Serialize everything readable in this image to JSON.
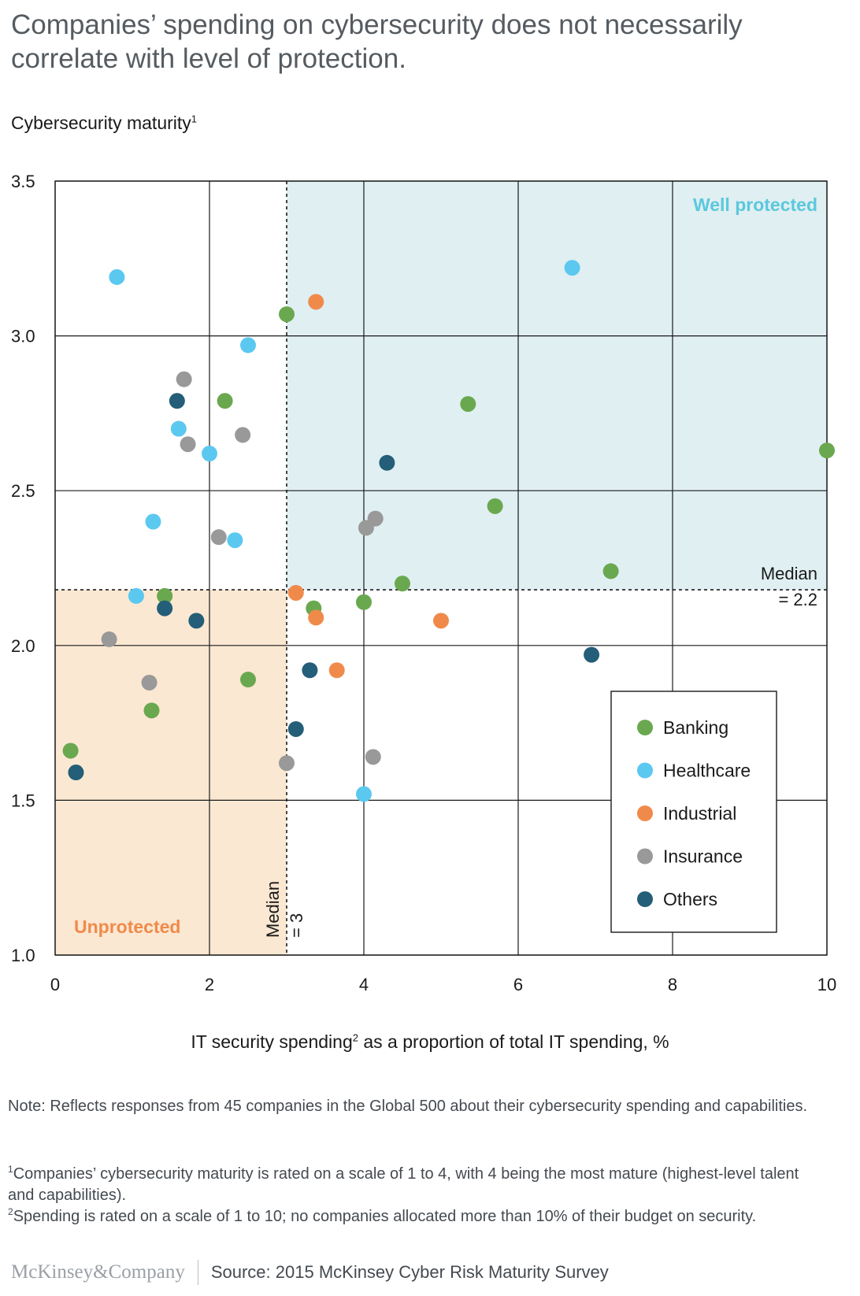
{
  "title": "Companies’ spending on cybersecurity does not necessarily correlate with level of protection.",
  "note": "Note: Reflects responses from 45 companies in the Global 500 about their cybersecurity spending and capabilities.",
  "footnotes": [
    {
      "marker": "1",
      "text": "Companies’ cybersecurity maturity is rated on a scale of 1 to 4, with 4 being the most mature (highest-level talent and capabilities)."
    },
    {
      "marker": "2",
      "text": "Spending is rated on a scale of 1 to 10; no companies allocated more than 10% of their budget on security."
    }
  ],
  "footer": {
    "logo": "McKinsey&Company",
    "source": "Source: 2015 McKinsey Cyber Risk Maturity Survey"
  },
  "colors": {
    "Banking": "#6aa84f",
    "Healthcare": "#5bc8f0",
    "Industrial": "#f08a4b",
    "Insurance": "#999999",
    "Others": "#245e78",
    "well_protected_fill": "#e0eff2",
    "unprotected_fill": "#fbe8d2",
    "well_protected_label": "#5bc8dc",
    "unprotected_label": "#f08a4b"
  },
  "chart_data": {
    "type": "scatter",
    "ylabel": {
      "text": "Cybersecurity maturity",
      "sup": "1"
    },
    "xlabel": {
      "pre": "IT security spending",
      "sup": "2",
      "post": " as a proportion of total IT spending, %"
    },
    "xlim": [
      0,
      10
    ],
    "ylim": [
      1.0,
      3.5
    ],
    "xticks": [
      0,
      2,
      4,
      6,
      8,
      10
    ],
    "xtick_labels": [
      "0",
      "2",
      "4",
      "6",
      "8",
      "10"
    ],
    "yticks": [
      1.0,
      1.5,
      2.0,
      2.5,
      3.0,
      3.5
    ],
    "ytick_labels": [
      "1.0",
      "1.5",
      "2.0",
      "2.5",
      "3.0",
      "3.5"
    ],
    "grid": true,
    "legend_position": "bottom-right",
    "median_x": {
      "value": 3,
      "label_line1": "Median",
      "label_line2": "= 3"
    },
    "median_y": {
      "value": 2.18,
      "label_line1": "Median",
      "label_line2": "= 2.2"
    },
    "regions": [
      {
        "label": "Well protected",
        "x": [
          3,
          10
        ],
        "y": [
          2.18,
          3.5
        ]
      },
      {
        "label": "Unprotected",
        "x": [
          0,
          3
        ],
        "y": [
          1.0,
          2.18
        ]
      }
    ],
    "series": [
      {
        "name": "Banking",
        "points": [
          [
            0.2,
            1.66
          ],
          [
            1.25,
            1.79
          ],
          [
            1.42,
            2.16
          ],
          [
            2.2,
            2.79
          ],
          [
            2.5,
            1.89
          ],
          [
            3.0,
            3.07
          ],
          [
            3.35,
            2.12
          ],
          [
            4.0,
            2.14
          ],
          [
            4.5,
            2.2
          ],
          [
            5.35,
            2.78
          ],
          [
            5.7,
            2.45
          ],
          [
            7.2,
            2.24
          ],
          [
            10.0,
            2.63
          ]
        ]
      },
      {
        "name": "Healthcare",
        "points": [
          [
            0.8,
            3.19
          ],
          [
            1.05,
            2.16
          ],
          [
            1.27,
            2.4
          ],
          [
            1.6,
            2.7
          ],
          [
            2.0,
            2.62
          ],
          [
            2.33,
            2.34
          ],
          [
            2.5,
            2.97
          ],
          [
            4.0,
            1.52
          ],
          [
            6.7,
            3.22
          ]
        ]
      },
      {
        "name": "Industrial",
        "points": [
          [
            3.12,
            2.17
          ],
          [
            3.38,
            2.09
          ],
          [
            3.38,
            3.11
          ],
          [
            3.65,
            1.92
          ],
          [
            5.0,
            2.08
          ]
        ]
      },
      {
        "name": "Insurance",
        "points": [
          [
            0.7,
            2.02
          ],
          [
            1.22,
            1.88
          ],
          [
            1.67,
            2.86
          ],
          [
            1.72,
            2.65
          ],
          [
            2.12,
            2.35
          ],
          [
            2.43,
            2.68
          ],
          [
            3.0,
            1.62
          ],
          [
            4.03,
            2.38
          ],
          [
            4.15,
            2.41
          ],
          [
            4.12,
            1.64
          ]
        ]
      },
      {
        "name": "Others",
        "points": [
          [
            0.27,
            1.59
          ],
          [
            1.42,
            2.12
          ],
          [
            1.58,
            2.79
          ],
          [
            1.83,
            2.08
          ],
          [
            3.3,
            1.92
          ],
          [
            3.12,
            1.73
          ],
          [
            4.3,
            2.59
          ],
          [
            6.95,
            1.97
          ]
        ]
      }
    ]
  }
}
